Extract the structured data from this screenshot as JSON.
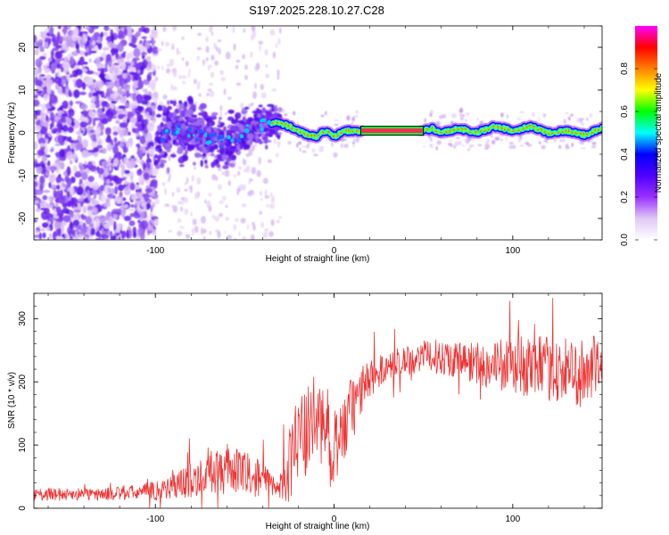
{
  "title": "S197.2025.228.10.27.C28",
  "chart_data": [
    {
      "type": "heatmap",
      "xlabel": "Height of straight line (km)",
      "ylabel": "Frequency (Hz)",
      "xlim": [
        -168,
        150
      ],
      "ylim": [
        -25,
        25
      ],
      "xticks": [
        -100,
        0,
        100
      ],
      "yticks": [
        -20,
        -10,
        0,
        10,
        20
      ],
      "colorbar": {
        "label": "Normalized spectral amplitude",
        "range": [
          0,
          1
        ],
        "ticks": [
          0.0,
          0.2,
          0.4,
          0.6,
          0.8
        ],
        "colors": [
          "#ffffff",
          "#e0c8f4",
          "#9b30ff",
          "#5000ff",
          "#0000ff",
          "#00ffff",
          "#00ff00",
          "#ffff00",
          "#ff8000",
          "#ff0000",
          "#ff00ff"
        ]
      },
      "ridge": {
        "x": [
          -100,
          -90,
          -80,
          -70,
          -60,
          -50,
          -40,
          -32,
          -25,
          -20,
          -15,
          -10,
          -5,
          0,
          5,
          10,
          15,
          50,
          55,
          60,
          70,
          80,
          90,
          100,
          110,
          120,
          130,
          140,
          150
        ],
        "y": [
          -2.5,
          1,
          0.5,
          -1.5,
          -2,
          0,
          1.5,
          2.5,
          1.5,
          0.5,
          -0.5,
          -1,
          0.5,
          -1,
          0.5,
          0.5,
          0.5,
          0.5,
          1,
          0,
          1,
          0,
          1.5,
          0.5,
          1.5,
          0,
          0.5,
          -0.5,
          1
        ]
      }
    },
    {
      "type": "line",
      "xlabel": "Height of straight line (km)",
      "ylabel": "SNR (10 * v/v)",
      "xlim": [
        -168,
        150
      ],
      "ylim": [
        0,
        340
      ],
      "xticks": [
        -100,
        0,
        100
      ],
      "yticks": [
        0,
        100,
        200,
        300
      ],
      "color": "#ee3333",
      "series": [
        {
          "name": "SNR",
          "x": [
            -168,
            -150,
            -130,
            -110,
            -100,
            -90,
            -80,
            -70,
            -60,
            -50,
            -40,
            -32,
            -25,
            -20,
            -15,
            -10,
            -5,
            0,
            5,
            10,
            15,
            20,
            25,
            30,
            40,
            50,
            60,
            70,
            80,
            90,
            100,
            110,
            120,
            130,
            140,
            150
          ],
          "y": [
            22,
            22,
            22,
            25,
            28,
            35,
            45,
            55,
            62,
            55,
            45,
            30,
            70,
            115,
            120,
            145,
            130,
            100,
            120,
            155,
            185,
            205,
            215,
            225,
            235,
            240,
            240,
            235,
            230,
            225,
            225,
            225,
            220,
            215,
            215,
            220
          ],
          "noise": [
            10,
            10,
            10,
            12,
            16,
            22,
            28,
            35,
            40,
            35,
            28,
            18,
            60,
            65,
            70,
            70,
            70,
            60,
            60,
            55,
            40,
            30,
            25,
            25,
            25,
            25,
            28,
            30,
            35,
            40,
            45,
            50,
            50,
            55,
            55,
            55
          ]
        }
      ]
    }
  ]
}
